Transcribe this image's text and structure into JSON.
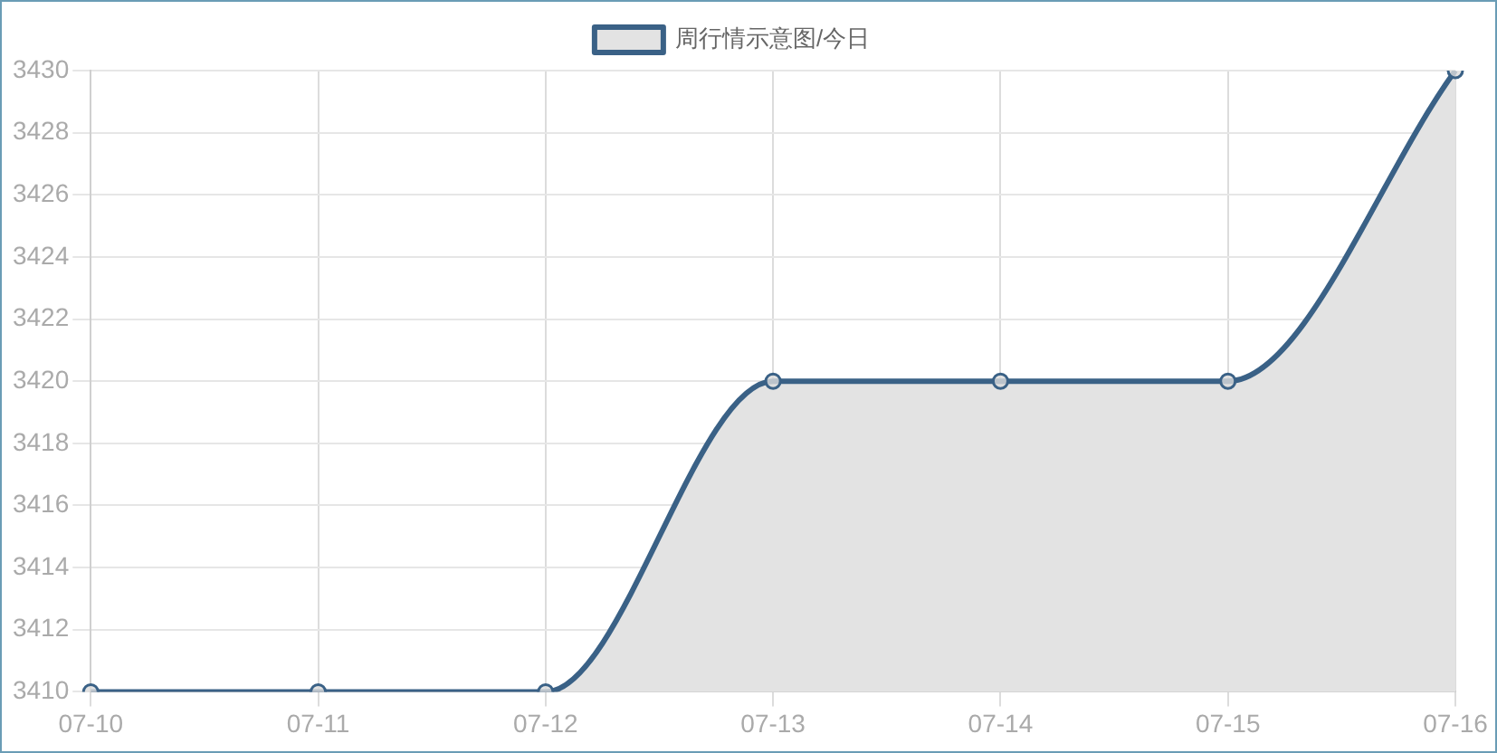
{
  "chart_data": {
    "type": "area",
    "categories": [
      "07-10",
      "07-11",
      "07-12",
      "07-13",
      "07-14",
      "07-15",
      "07-16"
    ],
    "series": [
      {
        "name": "周行情示意图/今日",
        "color": "#3a6186",
        "values": [
          3410,
          3410,
          3410,
          3420,
          3420,
          3420,
          3430
        ]
      }
    ],
    "ylim": [
      3410,
      3430
    ],
    "yticks": [
      3410,
      3412,
      3414,
      3416,
      3418,
      3420,
      3422,
      3424,
      3426,
      3428,
      3430
    ],
    "grid": true,
    "legend": "top",
    "marker": "circle",
    "line_style": "solid"
  }
}
